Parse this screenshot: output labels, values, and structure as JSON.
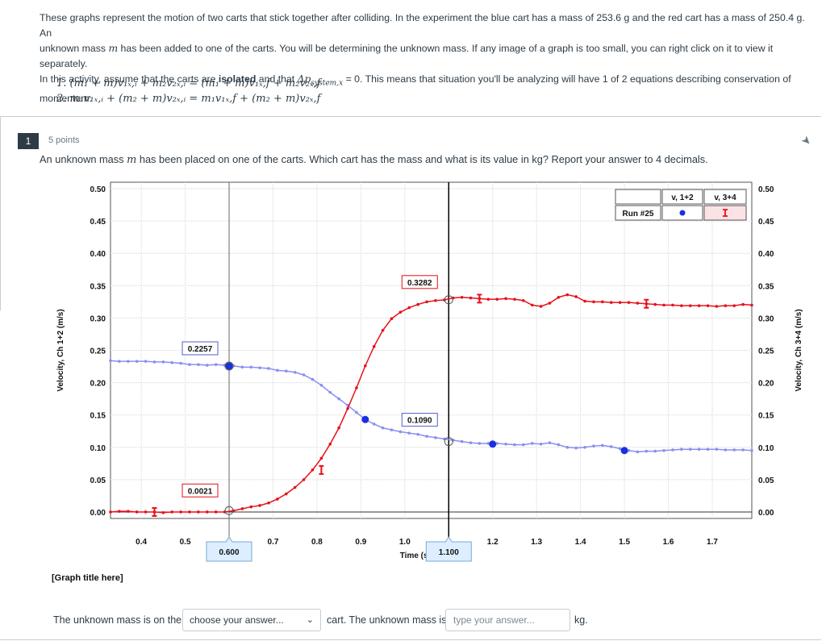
{
  "intro": {
    "line1": "These graphs represent the motion of two carts that stick together after colliding. In the experiment the blue cart has a mass of 253.6 g and the red cart has a mass of 250.4 g. An",
    "line2_pre": "unknown mass ",
    "line2_var": "m",
    "line2_post": " has been added to one of the carts. You will be determining the unknown mass. If any image of a graph is too small, you can right click on it to view it separately.",
    "line3_pre": "In this activity, assume that the carts are ",
    "line3_bold": "isolated",
    "line3_mid": " and that ",
    "line3_math": "Δp",
    "line3_sub": "system,x",
    "line3_post": " = 0. This means that situation you'll be analyzing will have 1 of 2 equations describing conservation of",
    "line4": "momentum:",
    "eq1": "1. (m₁ + m)v₁ₓ,ᵢ + m₂v₂ₓ,ᵢ = (m₁ + m)v₁ₓ,f + m₂v₂ₓ,f",
    "eq2": "2. m₁v₁ₓ,ᵢ + (m₂ + m)v₂ₓ,ᵢ = m₁v₁ₓ,f + (m₂ + m)v₂ₓ,f"
  },
  "question": {
    "number": "1",
    "points": "5 points",
    "text_pre": "An unknown mass ",
    "text_var": "m",
    "text_post": " has been placed on one of the carts. Which cart has the mass and what is its value in kg? Report your answer to 4 decimals."
  },
  "graph_title": "[Graph title here]",
  "answer": {
    "pre": "The unknown mass is on the",
    "select_value": "choose your answer...",
    "mid": "cart. The unknown mass is",
    "input_placeholder": "type your answer...",
    "post": "kg."
  },
  "colors": {
    "blue_series": "#8a8ff0",
    "blue_marker": "#1a2fe0",
    "red_series": "#e8101a",
    "text": "#2d3b45",
    "border": "#c7cdd1"
  },
  "chart_data": {
    "type": "line",
    "xlabel": "Time (s)",
    "ylabel_left": "Velocity, Ch 1+2 (m/s)",
    "ylabel_right": "Velocity, Ch 3+4 (m/s)",
    "xlim": [
      0.33,
      1.79
    ],
    "ylim": [
      -0.01,
      0.51
    ],
    "x_ticks": [
      "0.4",
      "0.5",
      "0.6",
      "0.7",
      "0.8",
      "0.9",
      "1.0",
      "1.1",
      "1.2",
      "1.3",
      "1.4",
      "1.5",
      "1.6",
      "1.7"
    ],
    "y_ticks": [
      "0.00",
      "0.05",
      "0.10",
      "0.15",
      "0.20",
      "0.25",
      "0.30",
      "0.35",
      "0.40",
      "0.45",
      "0.50"
    ],
    "cursor_labels": {
      "left": "0.600",
      "right": "1.100"
    },
    "cursors_x": [
      0.6,
      1.1
    ],
    "annotations": [
      {
        "text": "0.2257",
        "x": 0.6,
        "y": 0.2257,
        "series": "blue"
      },
      {
        "text": "0.0021",
        "x": 0.6,
        "y": 0.0021,
        "series": "red"
      },
      {
        "text": "0.3282",
        "x": 1.1,
        "y": 0.3282,
        "series": "red"
      },
      {
        "text": "0.1090",
        "x": 1.1,
        "y": 0.109,
        "series": "blue"
      }
    ],
    "legend": {
      "header_run": "",
      "col1": "v, 1+2",
      "col2": "v, 3+4",
      "row_label": "Run #25"
    },
    "series": [
      {
        "name": "v, 1+2",
        "color": "#8a8ff0",
        "x": [
          0.33,
          0.35,
          0.37,
          0.39,
          0.41,
          0.43,
          0.45,
          0.47,
          0.49,
          0.51,
          0.53,
          0.55,
          0.57,
          0.59,
          0.61,
          0.63,
          0.65,
          0.67,
          0.69,
          0.71,
          0.73,
          0.75,
          0.77,
          0.79,
          0.81,
          0.83,
          0.85,
          0.87,
          0.89,
          0.91,
          0.93,
          0.95,
          0.97,
          0.99,
          1.01,
          1.03,
          1.05,
          1.07,
          1.09,
          1.11,
          1.13,
          1.15,
          1.17,
          1.19,
          1.21,
          1.23,
          1.25,
          1.27,
          1.29,
          1.31,
          1.33,
          1.35,
          1.37,
          1.39,
          1.41,
          1.43,
          1.45,
          1.47,
          1.49,
          1.51,
          1.53,
          1.55,
          1.57,
          1.59,
          1.61,
          1.63,
          1.65,
          1.67,
          1.69,
          1.71,
          1.73,
          1.75,
          1.77,
          1.79
        ],
        "values": [
          0.234,
          0.233,
          0.233,
          0.233,
          0.233,
          0.232,
          0.232,
          0.231,
          0.23,
          0.228,
          0.228,
          0.227,
          0.228,
          0.227,
          0.226,
          0.224,
          0.224,
          0.223,
          0.222,
          0.219,
          0.218,
          0.216,
          0.212,
          0.205,
          0.196,
          0.185,
          0.175,
          0.165,
          0.154,
          0.143,
          0.136,
          0.13,
          0.127,
          0.124,
          0.122,
          0.12,
          0.117,
          0.115,
          0.113,
          0.111,
          0.109,
          0.107,
          0.106,
          0.106,
          0.106,
          0.105,
          0.104,
          0.104,
          0.106,
          0.105,
          0.107,
          0.104,
          0.1,
          0.099,
          0.1,
          0.102,
          0.103,
          0.101,
          0.098,
          0.095,
          0.093,
          0.094,
          0.094,
          0.095,
          0.096,
          0.097,
          0.097,
          0.097,
          0.097,
          0.097,
          0.096,
          0.096,
          0.096,
          0.095
        ]
      },
      {
        "name": "v, 3+4",
        "color": "#e8101a",
        "x": [
          0.33,
          0.35,
          0.37,
          0.39,
          0.41,
          0.43,
          0.45,
          0.47,
          0.49,
          0.51,
          0.53,
          0.55,
          0.57,
          0.59,
          0.61,
          0.63,
          0.65,
          0.67,
          0.69,
          0.71,
          0.73,
          0.75,
          0.77,
          0.79,
          0.81,
          0.83,
          0.85,
          0.87,
          0.89,
          0.91,
          0.93,
          0.95,
          0.97,
          0.99,
          1.01,
          1.03,
          1.05,
          1.07,
          1.09,
          1.11,
          1.13,
          1.15,
          1.17,
          1.19,
          1.21,
          1.23,
          1.25,
          1.27,
          1.29,
          1.31,
          1.33,
          1.35,
          1.37,
          1.39,
          1.41,
          1.43,
          1.45,
          1.47,
          1.49,
          1.51,
          1.53,
          1.55,
          1.57,
          1.59,
          1.61,
          1.63,
          1.65,
          1.67,
          1.69,
          1.71,
          1.73,
          1.75,
          1.77,
          1.79
        ],
        "values": [
          0.0,
          0.001,
          0.001,
          0.0,
          0.0,
          0.0,
          -0.001,
          0.0,
          0.0,
          0.0,
          0.0,
          0.0,
          0.0,
          0.0,
          0.002,
          0.005,
          0.008,
          0.01,
          0.014,
          0.02,
          0.028,
          0.038,
          0.05,
          0.065,
          0.083,
          0.105,
          0.13,
          0.16,
          0.192,
          0.226,
          0.256,
          0.281,
          0.299,
          0.309,
          0.316,
          0.321,
          0.325,
          0.327,
          0.328,
          0.331,
          0.332,
          0.331,
          0.33,
          0.329,
          0.329,
          0.33,
          0.329,
          0.327,
          0.32,
          0.318,
          0.323,
          0.332,
          0.336,
          0.333,
          0.326,
          0.325,
          0.325,
          0.324,
          0.324,
          0.324,
          0.323,
          0.322,
          0.321,
          0.32,
          0.32,
          0.319,
          0.319,
          0.319,
          0.319,
          0.318,
          0.319,
          0.319,
          0.321,
          0.32
        ]
      }
    ]
  }
}
